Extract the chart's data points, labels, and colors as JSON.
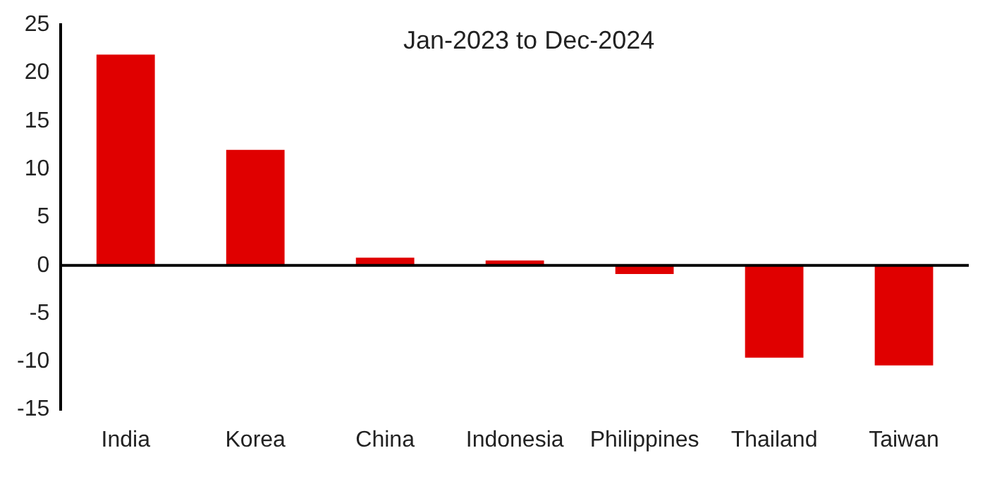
{
  "chart_data": {
    "type": "bar",
    "title": "Jan-2023 to Dec-2024",
    "categories": [
      "India",
      "Korea",
      "China",
      "Indonesia",
      "Philippines",
      "Thailand",
      "Taiwan"
    ],
    "values": [
      21.9,
      12.0,
      0.8,
      0.5,
      -0.9,
      -9.6,
      -10.4
    ],
    "color": "#e00000",
    "ylim": [
      -15,
      25
    ],
    "yticks": [
      -15,
      -10,
      -5,
      0,
      5,
      10,
      15,
      20,
      25
    ],
    "grid": false,
    "ref_lines": [
      {
        "axis": "y",
        "value": 0,
        "color": "#000000"
      }
    ]
  }
}
